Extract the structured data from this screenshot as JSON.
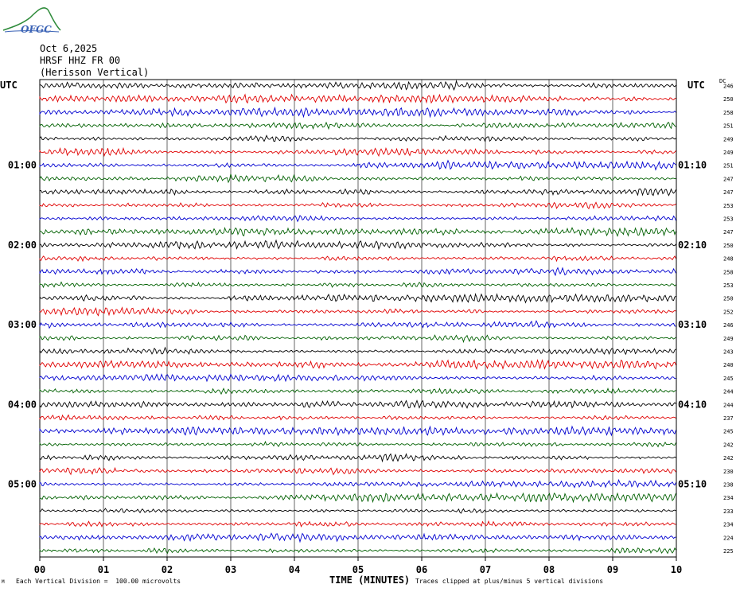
{
  "header": {
    "date": "Oct 6,2025",
    "station": "HRSF HHZ FR 00",
    "location": "(Herisson Vertical)",
    "logo_text": "OFGC"
  },
  "axes": {
    "left_title": "UTC",
    "right_title": "UTC",
    "dc_label": "DC",
    "x_title": "TIME (MINUTES)",
    "left_hour_labels": [
      "01:00",
      "02:00",
      "03:00",
      "04:00",
      "05:00"
    ],
    "right_hour_labels": [
      "01:10",
      "02:10",
      "03:10",
      "04:10",
      "05:10"
    ]
  },
  "footer": {
    "scale_note": "Each Vertical Division =  100.00 microvolts",
    "clip_note": "Traces clipped at plus/minus 5 vertical divisions",
    "corner_mark": "M"
  },
  "chart_data": {
    "type": "line",
    "title": "",
    "xlabel": "TIME (MINUTES)",
    "ylabel": "UTC",
    "x_ticks": [
      "00",
      "01",
      "02",
      "03",
      "04",
      "05",
      "06",
      "07",
      "08",
      "09",
      "10"
    ],
    "xlim": [
      0,
      10
    ],
    "trace_minutes": 10,
    "grid": true,
    "trace_colors": [
      "#000000",
      "#e00000",
      "#0000d0",
      "#006000"
    ],
    "dc_offsets": [
      246,
      250,
      258,
      251,
      249,
      249,
      251,
      247,
      247,
      253,
      253,
      247,
      250,
      248,
      258,
      253,
      250,
      252,
      246,
      249,
      243,
      240,
      245,
      244,
      244,
      237,
      245,
      242,
      242,
      230,
      238,
      234,
      233,
      234,
      224,
      225
    ],
    "left_label_rows": [
      6,
      12,
      18,
      24,
      30
    ],
    "right_label_rows": [
      6,
      12,
      18,
      24,
      30
    ]
  }
}
